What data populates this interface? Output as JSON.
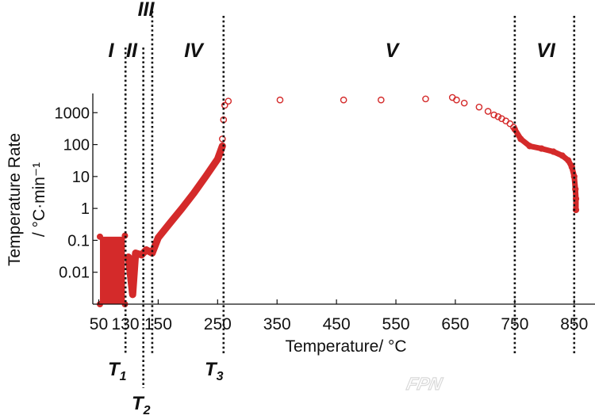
{
  "chart_data": {
    "type": "scatter",
    "xlabel": "Temperature/ °C",
    "ylabel_line1": "Temperature Rate",
    "ylabel_line2": "/ °C·min⁻¹",
    "x_ticks": [
      50,
      150,
      250,
      350,
      450,
      550,
      650,
      750,
      850
    ],
    "x_tick_labels": [
      "50",
      "150",
      "250",
      "350",
      "450",
      "550",
      "650",
      "750",
      "850"
    ],
    "extra_x_tick_label": "130",
    "y_ticks": [
      0.01,
      0.1,
      1,
      10,
      100,
      1000
    ],
    "y_tick_labels": [
      "0.01",
      "0.1",
      "1",
      "10",
      "100",
      "1000"
    ],
    "xlim": [
      40,
      885
    ],
    "ylim": [
      0.001,
      4000
    ],
    "y_scale": "log",
    "grid": false,
    "marker_color": "#d42a2a",
    "marker": "open-circle",
    "regions": [
      "I",
      "II",
      "III",
      "IV",
      "V",
      "VI"
    ],
    "thresholds": [
      {
        "label": "T",
        "sub": "1",
        "x": 95
      },
      {
        "label": "T",
        "sub": "2",
        "x": 125
      },
      {
        "label": "T",
        "sub": "3",
        "x": 260
      }
    ],
    "boundary_lines_x": [
      95,
      125,
      140,
      260,
      750,
      850
    ],
    "series_dense": [
      {
        "x": 52,
        "y": 0.001
      },
      {
        "x": 52,
        "y": 0.13
      },
      {
        "x": 94,
        "y": 0.001
      },
      {
        "x": 94,
        "y": 0.14
      },
      {
        "x": 100,
        "y": 0.03
      },
      {
        "x": 107,
        "y": 0.002
      },
      {
        "x": 112,
        "y": 0.04
      },
      {
        "x": 122,
        "y": 0.035
      },
      {
        "x": 130,
        "y": 0.05
      },
      {
        "x": 140,
        "y": 0.04
      },
      {
        "x": 150,
        "y": 0.12
      },
      {
        "x": 170,
        "y": 0.35
      },
      {
        "x": 190,
        "y": 1
      },
      {
        "x": 210,
        "y": 3
      },
      {
        "x": 230,
        "y": 10
      },
      {
        "x": 250,
        "y": 35
      },
      {
        "x": 258,
        "y": 90
      }
    ],
    "series_sparse": [
      {
        "x": 258,
        "y": 150
      },
      {
        "x": 260,
        "y": 600
      },
      {
        "x": 262,
        "y": 1700
      },
      {
        "x": 268,
        "y": 2300
      },
      {
        "x": 355,
        "y": 2500
      },
      {
        "x": 462,
        "y": 2500
      },
      {
        "x": 525,
        "y": 2500
      },
      {
        "x": 600,
        "y": 2700
      },
      {
        "x": 645,
        "y": 3000
      },
      {
        "x": 652,
        "y": 2500
      },
      {
        "x": 665,
        "y": 2000
      },
      {
        "x": 690,
        "y": 1500
      },
      {
        "x": 705,
        "y": 1100
      },
      {
        "x": 715,
        "y": 850
      },
      {
        "x": 722,
        "y": 750
      },
      {
        "x": 728,
        "y": 650
      },
      {
        "x": 735,
        "y": 550
      },
      {
        "x": 742,
        "y": 450
      },
      {
        "x": 748,
        "y": 350
      }
    ],
    "series_tail": [
      {
        "x": 750,
        "y": 300
      },
      {
        "x": 760,
        "y": 150
      },
      {
        "x": 775,
        "y": 90
      },
      {
        "x": 795,
        "y": 75
      },
      {
        "x": 815,
        "y": 60
      },
      {
        "x": 830,
        "y": 45
      },
      {
        "x": 840,
        "y": 32
      },
      {
        "x": 846,
        "y": 20
      },
      {
        "x": 850,
        "y": 10
      },
      {
        "x": 852,
        "y": 4
      },
      {
        "x": 853,
        "y": 2
      },
      {
        "x": 853,
        "y": 0.9
      }
    ]
  },
  "watermark": "FPN"
}
